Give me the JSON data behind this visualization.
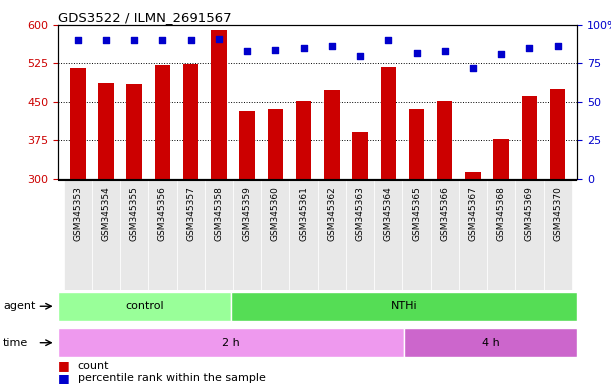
{
  "title": "GDS3522 / ILMN_2691567",
  "samples": [
    "GSM345353",
    "GSM345354",
    "GSM345355",
    "GSM345356",
    "GSM345357",
    "GSM345358",
    "GSM345359",
    "GSM345360",
    "GSM345361",
    "GSM345362",
    "GSM345363",
    "GSM345364",
    "GSM345365",
    "GSM345366",
    "GSM345367",
    "GSM345368",
    "GSM345369",
    "GSM345370"
  ],
  "counts": [
    515,
    487,
    485,
    522,
    524,
    590,
    432,
    436,
    452,
    472,
    390,
    517,
    435,
    452,
    312,
    377,
    462,
    475
  ],
  "percentiles": [
    90,
    90,
    90,
    90,
    90,
    91,
    83,
    84,
    85,
    86,
    80,
    90,
    82,
    83,
    72,
    81,
    85,
    86
  ],
  "ylim_left": [
    300,
    600
  ],
  "ylim_right": [
    0,
    100
  ],
  "yticks_left": [
    300,
    375,
    450,
    525,
    600
  ],
  "yticks_right": [
    0,
    25,
    50,
    75,
    100
  ],
  "bar_color": "#cc0000",
  "dot_color": "#0000cc",
  "agent_groups": [
    {
      "label": "control",
      "start": 0,
      "end": 6,
      "color": "#99ff99"
    },
    {
      "label": "NTHi",
      "start": 6,
      "end": 18,
      "color": "#55dd55"
    }
  ],
  "time_groups": [
    {
      "label": "2 h",
      "start": 0,
      "end": 12,
      "color": "#ee99ee"
    },
    {
      "label": "4 h",
      "start": 12,
      "end": 18,
      "color": "#cc66cc"
    }
  ],
  "background_color": "#ffffff",
  "tick_label_color_left": "#cc0000",
  "tick_label_color_right": "#0000cc",
  "gridline_ticks": [
    375,
    450,
    525
  ]
}
